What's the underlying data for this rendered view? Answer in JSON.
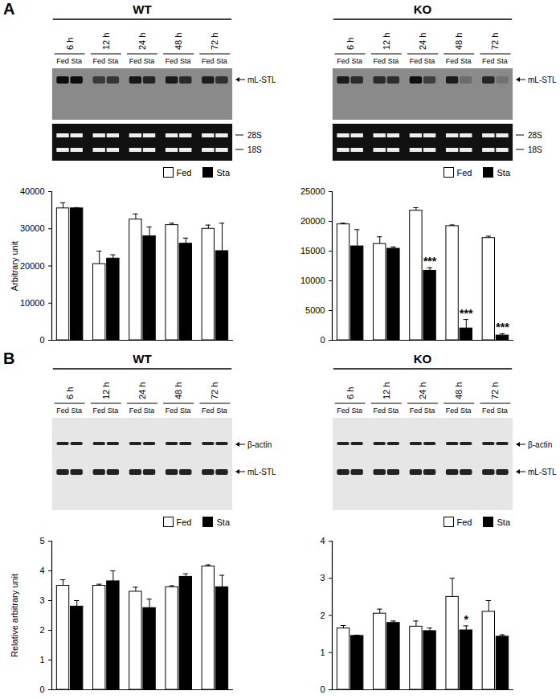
{
  "chart_data": [
    {
      "type": "bar",
      "panel": "A",
      "title": "WT",
      "categories": [
        "6 h",
        "12 h",
        "24 h",
        "48 h",
        "72 h"
      ],
      "blot_bands": [
        "mL-STL",
        "28S",
        "18S"
      ],
      "series": [
        {
          "name": "Fed",
          "color": "#ffffff",
          "values": [
            35500,
            20500,
            32500,
            31000,
            30000
          ],
          "errors": [
            1500,
            3500,
            1500,
            500,
            1000
          ]
        },
        {
          "name": "Sta",
          "color": "#000000",
          "values": [
            35500,
            22000,
            28000,
            26000,
            24000
          ],
          "errors": [
            200,
            1000,
            2500,
            1500,
            7500
          ]
        }
      ],
      "ylim": [
        0,
        40000
      ],
      "yticks": [
        0,
        10000,
        20000,
        30000,
        40000
      ],
      "ylabel": "Arbitrary unit",
      "legend": "top-right",
      "tick_labels": "y"
    },
    {
      "type": "bar",
      "title": "KO",
      "categories": [
        "6 h",
        "12 h",
        "24 h",
        "48 h",
        "72 h"
      ],
      "blot_bands": [
        "mL-STL",
        "28S",
        "18S"
      ],
      "series": [
        {
          "name": "Fed",
          "color": "#ffffff",
          "values": [
            19500,
            16200,
            21800,
            19200,
            17200
          ],
          "errors": [
            200,
            1200,
            500,
            200,
            300
          ]
        },
        {
          "name": "Sta",
          "color": "#000000",
          "values": [
            15800,
            15400,
            11700,
            2000,
            800
          ],
          "errors": [
            2800,
            300,
            500,
            1500,
            300
          ],
          "significance": [
            null,
            null,
            "***",
            "***",
            "***"
          ]
        }
      ],
      "ylim": [
        0,
        25000
      ],
      "yticks": [
        0,
        5000,
        10000,
        15000,
        20000,
        25000
      ],
      "legend": "top-right",
      "tick_labels": "y"
    },
    {
      "type": "bar",
      "panel": "B",
      "title": "WT",
      "categories": [
        "6 h",
        "12 h",
        "24 h",
        "48 h",
        "72 h"
      ],
      "blot_bands": [
        "β-actin",
        "mL-STL"
      ],
      "series": [
        {
          "name": "Fed",
          "color": "#ffffff",
          "values": [
            3.5,
            3.5,
            3.3,
            3.45,
            4.15
          ],
          "errors": [
            0.2,
            0.05,
            0.15,
            0.05,
            0.05
          ]
        },
        {
          "name": "Sta",
          "color": "#000000",
          "values": [
            2.8,
            3.65,
            2.75,
            3.8,
            3.45
          ],
          "errors": [
            0.2,
            0.35,
            0.3,
            0.1,
            0.4
          ]
        }
      ],
      "ylim": [
        0,
        5
      ],
      "yticks": [
        0,
        1,
        2,
        3,
        4,
        5
      ],
      "ylabel": "Relative arbitrary unit",
      "legend": "top-right",
      "tick_labels": "y"
    },
    {
      "type": "bar",
      "title": "KO",
      "categories": [
        "6 h",
        "12 h",
        "24 h",
        "48 h",
        "72 h"
      ],
      "blot_bands": [
        "β-actin",
        "mL-STL"
      ],
      "series": [
        {
          "name": "Fed",
          "color": "#ffffff",
          "values": [
            1.65,
            2.05,
            1.7,
            2.5,
            2.1
          ],
          "errors": [
            0.08,
            0.12,
            0.15,
            0.5,
            0.3
          ]
        },
        {
          "name": "Sta",
          "color": "#000000",
          "values": [
            1.45,
            1.8,
            1.58,
            1.6,
            1.43
          ],
          "errors": [
            0.02,
            0.05,
            0.08,
            0.12,
            0.05
          ],
          "significance": [
            null,
            null,
            null,
            "*",
            null
          ]
        }
      ],
      "ylim": [
        0,
        4
      ],
      "yticks": [
        0,
        1,
        2,
        3,
        4
      ],
      "legend": "top-right",
      "tick_labels": "y"
    }
  ]
}
